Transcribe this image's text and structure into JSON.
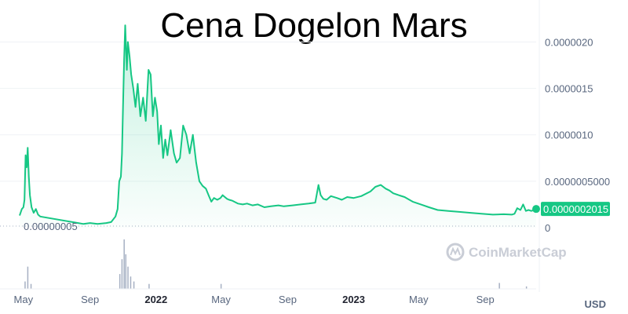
{
  "title": "Cena Dogelon Mars",
  "currency_label": "USD",
  "watermark": "CoinMarketCap",
  "accent_color": "#16c784",
  "min_label": "0.00000005",
  "current_price_label": "0.0000002015",
  "chart_data": {
    "type": "area",
    "title": "Cena Dogelon Mars",
    "y_tick_labels": [
      "0",
      "0.0000005000",
      "0.0000010",
      "0.0000015",
      "0.0000020"
    ],
    "y_ticks": [
      0,
      5e-07,
      1e-06,
      1.5e-06,
      2e-06
    ],
    "ylim": [
      0,
      2.3e-06
    ],
    "x_tick_labels": [
      "May",
      "Sep",
      "2022",
      "May",
      "Sep",
      "2023",
      "May",
      "Sep"
    ],
    "x_tick_bold": [
      false,
      false,
      true,
      false,
      false,
      true,
      false,
      false
    ],
    "x_tick_dates": [
      "2021-05-01",
      "2021-09-01",
      "2022-01-01",
      "2022-05-01",
      "2022-09-01",
      "2023-01-01",
      "2023-05-01",
      "2023-09-01"
    ],
    "xlim": [
      "2021-04-24",
      "2023-12-04"
    ],
    "grid": true,
    "series": [
      {
        "x": [
          "2021-04-24",
          "2021-04-28",
          "2021-05-01",
          "2021-05-03",
          "2021-05-05",
          "2021-05-07",
          "2021-05-09",
          "2021-05-11",
          "2021-05-13",
          "2021-05-16",
          "2021-05-20",
          "2021-05-24",
          "2021-05-28",
          "2021-06-01",
          "2021-08-10",
          "2021-08-20",
          "2021-09-01",
          "2021-09-15",
          "2021-10-01",
          "2021-10-10",
          "2021-10-18",
          "2021-10-22",
          "2021-10-25",
          "2021-10-28",
          "2021-10-30",
          "2021-11-01",
          "2021-11-03",
          "2021-11-05",
          "2021-11-08",
          "2021-11-10",
          "2021-11-13",
          "2021-11-16",
          "2021-11-20",
          "2021-11-24",
          "2021-11-28",
          "2021-12-03",
          "2021-12-08",
          "2021-12-13",
          "2021-12-18",
          "2021-12-22",
          "2021-12-26",
          "2021-12-30",
          "2022-01-03",
          "2022-01-06",
          "2022-01-10",
          "2022-01-14",
          "2022-01-18",
          "2022-01-22",
          "2022-01-28",
          "2022-02-03",
          "2022-02-08",
          "2022-02-14",
          "2022-02-20",
          "2022-02-26",
          "2022-03-04",
          "2022-03-10",
          "2022-03-16",
          "2022-03-22",
          "2022-03-28",
          "2022-04-03",
          "2022-04-08",
          "2022-04-13",
          "2022-04-18",
          "2022-04-24",
          "2022-04-30",
          "2022-05-04",
          "2022-05-08",
          "2022-05-12",
          "2022-05-16",
          "2022-05-22",
          "2022-06-01",
          "2022-06-10",
          "2022-06-18",
          "2022-06-28",
          "2022-07-08",
          "2022-07-20",
          "2022-08-01",
          "2022-08-15",
          "2022-08-25",
          "2022-09-10",
          "2022-09-25",
          "2022-10-10",
          "2022-10-22",
          "2022-10-28",
          "2022-11-01",
          "2022-11-06",
          "2022-11-12",
          "2022-11-20",
          "2022-12-01",
          "2022-12-10",
          "2022-12-20",
          "2023-01-01",
          "2023-01-15",
          "2023-02-01",
          "2023-02-10",
          "2023-02-20",
          "2023-03-01",
          "2023-03-08",
          "2023-03-15",
          "2023-03-25",
          "2023-04-05",
          "2023-04-20",
          "2023-05-05",
          "2023-05-20",
          "2023-06-05",
          "2023-06-25",
          "2023-07-15",
          "2023-08-05",
          "2023-08-25",
          "2023-09-15",
          "2023-10-05",
          "2023-10-20",
          "2023-10-25",
          "2023-10-30",
          "2023-11-05",
          "2023-11-10",
          "2023-11-15",
          "2023-11-20",
          "2023-11-25",
          "2023-11-30",
          "2023-12-04"
        ],
        "y": [
          1.3e-07,
          2e-07,
          2.2e-07,
          3e-07,
          7.8e-07,
          6.5e-07,
          8.6e-07,
          5.5e-07,
          3.5e-07,
          2.2e-07,
          1.6e-07,
          2e-07,
          1.4e-07,
          1.2e-07,
          5e-08,
          4e-08,
          5e-08,
          4e-08,
          5e-08,
          6e-08,
          1.2e-07,
          2e-07,
          5e-07,
          5.5e-07,
          8e-07,
          1.3e-06,
          1.8e-06,
          2.18e-06,
          1.7e-06,
          2e-06,
          1.85e-06,
          1.65e-06,
          1.5e-06,
          1.3e-06,
          1.55e-06,
          1.2e-06,
          1.4e-06,
          1.15e-06,
          1.7e-06,
          1.65e-06,
          1.2e-06,
          1.4e-06,
          1.25e-06,
          9e-07,
          1.1e-06,
          7.5e-07,
          9.5e-07,
          7.8e-07,
          1.05e-06,
          8e-07,
          7e-07,
          7.5e-07,
          1.1e-06,
          1e-06,
          8e-07,
          1e-06,
          7e-07,
          5e-07,
          4.5e-07,
          4.2e-07,
          3.5e-07,
          2.8e-07,
          3.2e-07,
          3e-07,
          3.2e-07,
          3.5e-07,
          3.3e-07,
          3.1e-07,
          3e-07,
          2.9e-07,
          2.6e-07,
          2.5e-07,
          2.6e-07,
          2.4e-07,
          2.5e-07,
          2.2e-07,
          2.3e-07,
          2.4e-07,
          2.3e-07,
          2.4e-07,
          2.5e-07,
          2.6e-07,
          2.7e-07,
          4.6e-07,
          3.5e-07,
          3.1e-07,
          3e-07,
          3.4e-07,
          3.2e-07,
          3e-07,
          3.3e-07,
          3.2e-07,
          3.4e-07,
          3.9e-07,
          4.4e-07,
          4.6e-07,
          4.2e-07,
          4e-07,
          3.7e-07,
          3.5e-07,
          3.3e-07,
          2.8e-07,
          2.5e-07,
          2.2e-07,
          1.9e-07,
          1.8e-07,
          1.7e-07,
          1.6e-07,
          1.5e-07,
          1.4e-07,
          1.45e-07,
          1.4e-07,
          1.5e-07,
          2.1e-07,
          1.9e-07,
          2.5e-07,
          1.8e-07,
          1.9e-07,
          1.8e-07,
          1.9e-07,
          2.015e-07
        ]
      }
    ],
    "volume": {
      "x": [
        "2021-05-03",
        "2021-05-08",
        "2021-05-14",
        "2021-10-25",
        "2021-10-29",
        "2021-11-02",
        "2021-11-05",
        "2021-11-09",
        "2021-11-14",
        "2021-11-20",
        "2021-12-18",
        "2022-04-30",
        "2023-09-26",
        "2023-11-15"
      ],
      "relative": [
        0.15,
        0.45,
        0.1,
        0.3,
        0.6,
        1.0,
        0.7,
        0.45,
        0.25,
        0.15,
        0.1,
        0.1,
        0.12,
        0.05
      ]
    }
  }
}
